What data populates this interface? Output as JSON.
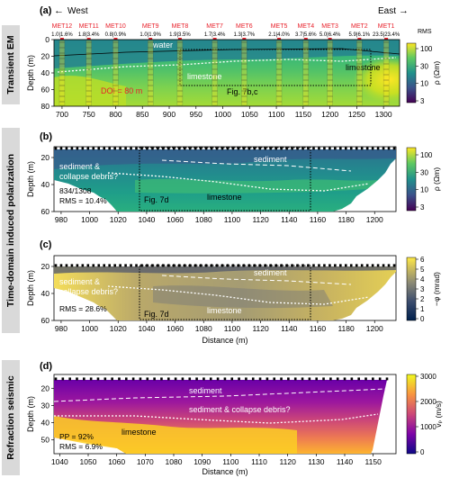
{
  "sections": {
    "tem": "Transient EM",
    "tdip": "Time-domain induced polarization",
    "seis": "Refraction seismic"
  },
  "colors": {
    "band": "#d9d9d9",
    "label_red": "#e8212b",
    "viridis_low": "#440154",
    "viridis_high": "#fde725",
    "plasma_low": "#0d0887",
    "plasma_high": "#f0f921",
    "cividis_low": "#00204d",
    "cividis_high": "#ffea46"
  },
  "panel_a": {
    "label": "(a)",
    "west": "West",
    "east": "East",
    "rms_header": "RMS",
    "stations": [
      {
        "name": "MET12",
        "rms": "1.0|1.6%",
        "x": 700
      },
      {
        "name": "MET11",
        "rms": "1.8|3.4%",
        "x": 750
      },
      {
        "name": "MET10",
        "rms": "0.8|0.9%",
        "x": 800
      },
      {
        "name": "MET9",
        "rms": "1.0|1.9%",
        "x": 865
      },
      {
        "name": "MET8",
        "rms": "1.9|3.5%",
        "x": 920
      },
      {
        "name": "MET7",
        "rms": "1.7|3.4%",
        "x": 985
      },
      {
        "name": "MET6",
        "rms": "1.3|3.7%",
        "x": 1040
      },
      {
        "name": "MET5",
        "rms": "2.1|4.0%",
        "x": 1105
      },
      {
        "name": "MET4",
        "rms": "3.7|5.6%",
        "x": 1155
      },
      {
        "name": "MET3",
        "rms": "5.0|6.4%",
        "x": 1200
      },
      {
        "name": "MET2",
        "rms": "5.9|6.1%",
        "x": 1255
      },
      {
        "name": "MET1",
        "rms": "23.5|23.4%",
        "x": 1305
      }
    ],
    "annotations": {
      "water": "water",
      "limestone_center": "limestone",
      "limestone_right": "limestone",
      "doi": "DOI = 80 m",
      "fig_ref": "Fig. 7b,c"
    },
    "ylabel": "Depth (m)",
    "xticks": [
      700,
      750,
      800,
      850,
      900,
      950,
      1000,
      1050,
      1100,
      1150,
      1200,
      1250,
      1300
    ],
    "yticks": [
      0,
      20,
      40,
      60,
      80
    ],
    "colorbar": {
      "label": "ρ (Ωm)",
      "ticks": [
        "100",
        "30",
        "10",
        "3"
      ]
    }
  },
  "panel_b": {
    "label": "(b)",
    "annotations": {
      "sediment_left": "sediment &",
      "collapse_left": "collapse debris?",
      "sediment_right": "sediment",
      "limestone": "limestone",
      "fig_ref": "Fig. 7d",
      "count": "834/1308",
      "rms": "RMS = 10.4%"
    },
    "ylabel": "Depth (m)",
    "xticks": [
      980,
      1000,
      1020,
      1040,
      1060,
      1080,
      1100,
      1120,
      1140,
      1160,
      1180,
      1200
    ],
    "yticks": [
      20,
      40,
      60
    ],
    "colorbar": {
      "label": "ρ (Ωm)",
      "ticks": [
        "100",
        "30",
        "10",
        "3"
      ]
    }
  },
  "panel_c": {
    "label": "(c)",
    "annotations": {
      "sediment_left": "sediment &",
      "collapse_left": "collapse debris?",
      "sediment_right": "sediment",
      "limestone": "limestone",
      "fig_ref": "Fig. 7d",
      "rms": "RMS = 28.6%"
    },
    "ylabel": "Depth (m)",
    "xlabel": "Distance (m)",
    "xticks": [
      980,
      1000,
      1020,
      1040,
      1060,
      1080,
      1100,
      1120,
      1140,
      1160,
      1180,
      1200
    ],
    "yticks": [
      20,
      40,
      60
    ],
    "colorbar": {
      "label": "−φ (mrad)",
      "ticks": [
        "6",
        "5",
        "4",
        "3",
        "2",
        "1",
        "0"
      ]
    }
  },
  "panel_d": {
    "label": "(d)",
    "annotations": {
      "sediment": "sediment",
      "collapse": "sediment & collapse debris?",
      "limestone": "limestone",
      "pp": "PP = 92%",
      "rms": "RMS = 6.9%"
    },
    "ylabel": "Depth (m)",
    "xlabel": "Distance (m)",
    "xticks": [
      1040,
      1050,
      1060,
      1070,
      1080,
      1090,
      1100,
      1110,
      1120,
      1130,
      1140,
      1150
    ],
    "yticks": [
      20,
      30,
      40,
      50
    ],
    "colorbar": {
      "label": "vₚ (m/s)",
      "ticks": [
        "3000",
        "2000",
        "1000",
        "0"
      ]
    }
  }
}
